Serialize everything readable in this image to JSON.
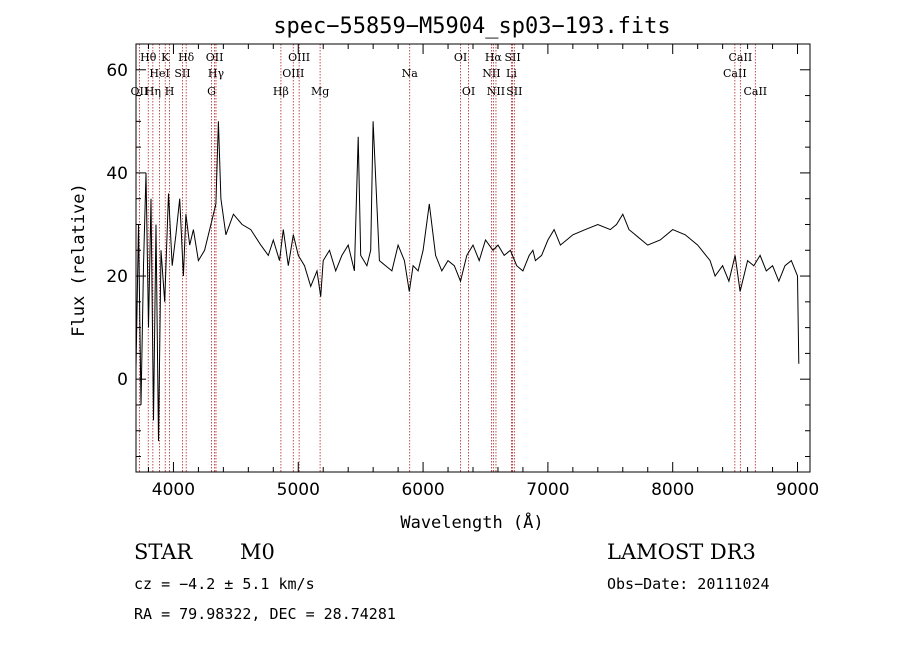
{
  "chart_data": {
    "type": "line",
    "title": "spec−55859−M5904_sp03−193.fits",
    "xlabel": "Wavelength (Å)",
    "ylabel": "Flux (relative)",
    "xlim": [
      3700,
      9100
    ],
    "ylim": [
      -18,
      65
    ],
    "xticks": [
      4000,
      5000,
      6000,
      7000,
      8000,
      9000
    ],
    "yticks": [
      0,
      20,
      40,
      60
    ],
    "series": [
      {
        "name": "spectrum",
        "x": [
          3700,
          3720,
          3740,
          3760,
          3780,
          3800,
          3820,
          3840,
          3860,
          3880,
          3900,
          3930,
          3960,
          3990,
          4020,
          4050,
          4080,
          4100,
          4130,
          4160,
          4200,
          4250,
          4300,
          4340,
          4360,
          4380,
          4420,
          4480,
          4550,
          4620,
          4700,
          4760,
          4800,
          4850,
          4880,
          4920,
          4960,
          5000,
          5050,
          5100,
          5150,
          5180,
          5200,
          5250,
          5300,
          5350,
          5400,
          5450,
          5480,
          5500,
          5550,
          5580,
          5600,
          5650,
          5700,
          5750,
          5800,
          5850,
          5890,
          5920,
          5960,
          6000,
          6050,
          6100,
          6150,
          6200,
          6250,
          6300,
          6350,
          6400,
          6450,
          6500,
          6560,
          6600,
          6650,
          6700,
          6750,
          6800,
          6850,
          6880,
          6900,
          6950,
          7000,
          7050,
          7100,
          7150,
          7200,
          7300,
          7400,
          7500,
          7550,
          7600,
          7650,
          7700,
          7800,
          7900,
          8000,
          8100,
          8200,
          8300,
          8340,
          8400,
          8450,
          8500,
          8540,
          8600,
          8650,
          8700,
          8750,
          8800,
          8850,
          8900,
          8950,
          9000,
          9010
        ],
        "y": [
          2,
          30,
          -5,
          22,
          40,
          10,
          35,
          -8,
          30,
          -12,
          25,
          15,
          36,
          22,
          28,
          35,
          20,
          32,
          26,
          29,
          23,
          25,
          30,
          34,
          50,
          35,
          28,
          32,
          30,
          29,
          26,
          24,
          27,
          23,
          29,
          22,
          28,
          24,
          22,
          18,
          21,
          16,
          23,
          25,
          21,
          24,
          26,
          21,
          47,
          24,
          22,
          25,
          50,
          23,
          22,
          21,
          26,
          23,
          17,
          22,
          21,
          25,
          34,
          24,
          21,
          23,
          22,
          19,
          24,
          26,
          23,
          27,
          25,
          26,
          24,
          25,
          22,
          21,
          24,
          25,
          23,
          24,
          27,
          29,
          26,
          27,
          28,
          29,
          30,
          29,
          30,
          32,
          29,
          28,
          26,
          27,
          29,
          28,
          26,
          23,
          20,
          22,
          19,
          24,
          17,
          23,
          22,
          24,
          21,
          22,
          19,
          22,
          23,
          20,
          3
        ]
      }
    ],
    "spectral_lines": [
      {
        "label": "Hθ",
        "wave": 3798,
        "row": 0
      },
      {
        "label": "OII",
        "wave": 3727,
        "row": 2
      },
      {
        "label": "Hη",
        "wave": 3835,
        "row": 2
      },
      {
        "label": "HeI",
        "wave": 3889,
        "row": 1
      },
      {
        "label": "K",
        "wave": 3934,
        "row": 0
      },
      {
        "label": "H",
        "wave": 3969,
        "row": 2
      },
      {
        "label": "SII",
        "wave": 4072,
        "row": 1
      },
      {
        "label": "Hδ",
        "wave": 4102,
        "row": 0
      },
      {
        "label": "G",
        "wave": 4305,
        "row": 2
      },
      {
        "label": "OII",
        "wave": 4330,
        "row": 0
      },
      {
        "label": "Hγ",
        "wave": 4341,
        "row": 1
      },
      {
        "label": "Hβ",
        "wave": 4861,
        "row": 2
      },
      {
        "label": "OIII",
        "wave": 4960,
        "row": 1
      },
      {
        "label": "OIII",
        "wave": 5007,
        "row": 0
      },
      {
        "label": "Mg",
        "wave": 5175,
        "row": 2
      },
      {
        "label": "Na",
        "wave": 5893,
        "row": 1
      },
      {
        "label": "OI",
        "wave": 6300,
        "row": 0
      },
      {
        "label": "OI",
        "wave": 6364,
        "row": 2
      },
      {
        "label": "NII",
        "wave": 6548,
        "row": 1
      },
      {
        "label": "Hα",
        "wave": 6563,
        "row": 0
      },
      {
        "label": "NII",
        "wave": 6584,
        "row": 2
      },
      {
        "label": "Li",
        "wave": 6708,
        "row": 1
      },
      {
        "label": "SII",
        "wave": 6717,
        "row": 0
      },
      {
        "label": "SII",
        "wave": 6731,
        "row": 2
      },
      {
        "label": "CaII",
        "wave": 8498,
        "row": 1
      },
      {
        "label": "CaII",
        "wave": 8542,
        "row": 0
      },
      {
        "label": "CaII",
        "wave": 8662,
        "row": 2
      }
    ]
  },
  "info": {
    "class": "STAR",
    "subclass": "M0",
    "survey": "LAMOST DR3",
    "cz": "cz = −4.2 ± 5.1 km/s",
    "obs_date": "Obs−Date: 20111024",
    "coords": "RA =  79.98322, DEC =  28.74281"
  },
  "colors": {
    "line_marker": "#b22222",
    "spectrum": "#000000"
  }
}
